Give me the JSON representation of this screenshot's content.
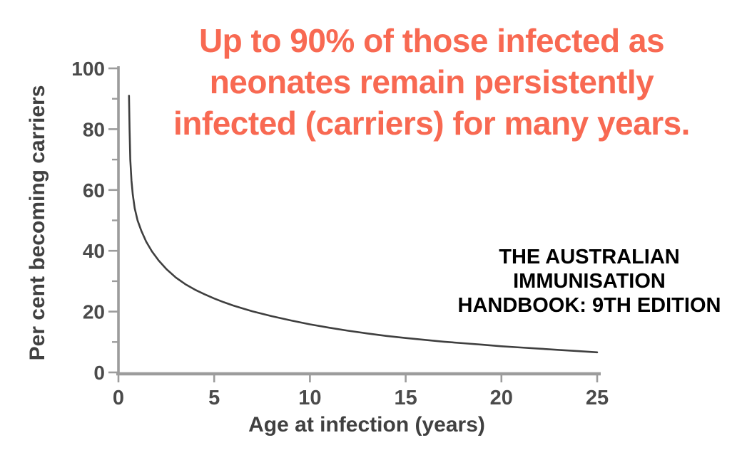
{
  "annotation": {
    "lines": [
      "Up to 90% of those infected as",
      "neonates remain persistently",
      "infected (carriers) for many years."
    ],
    "color": "#f86952"
  },
  "attribution": {
    "lines": [
      "THE AUSTRALIAN",
      "IMMUNISATION",
      "HANDBOOK: 9TH EDITION"
    ],
    "color": "#000000"
  },
  "chart_data": {
    "type": "line",
    "title": "",
    "xlabel": "Age at infection (years)",
    "ylabel": "Per cent becoming carriers",
    "xlim": [
      0,
      25
    ],
    "ylim": [
      0,
      100
    ],
    "x_ticks": [
      0,
      5,
      10,
      15,
      20,
      25
    ],
    "x_tick_labels": [
      "0",
      "5",
      "10",
      "15",
      "20",
      "25"
    ],
    "y_ticks_major": [
      0,
      20,
      40,
      60,
      80,
      100
    ],
    "y_tick_labels": [
      "0",
      "20",
      "40",
      "60",
      "80",
      "100"
    ],
    "y_ticks_minor": [
      10,
      30,
      50,
      70,
      90
    ],
    "grid": false,
    "legend": false,
    "series": [
      {
        "name": "per-cent-becoming-carriers",
        "x": [
          0.55,
          0.58,
          0.62,
          0.68,
          0.75,
          0.85,
          1.0,
          1.2,
          1.45,
          1.75,
          2.1,
          2.5,
          3.0,
          3.5,
          4.0,
          4.5,
          5.0,
          5.5,
          6.0,
          6.5,
          7.0,
          7.5,
          8.0,
          9.0,
          10.0,
          11.0,
          12.0,
          13.0,
          14.0,
          15.0,
          16.0,
          17.0,
          18.0,
          19.0,
          20.0,
          21.0,
          22.0,
          23.0,
          24.0,
          25.0
        ],
        "y": [
          91,
          80,
          70,
          63,
          58.5,
          54,
          50,
          46.5,
          43,
          39.8,
          36.8,
          34,
          31.2,
          29,
          27.2,
          25.7,
          24.3,
          23.1,
          22,
          21,
          20.1,
          19.3,
          18.5,
          17.1,
          15.8,
          14.7,
          13.7,
          12.8,
          12,
          11.3,
          10.7,
          10.1,
          9.6,
          9.1,
          8.6,
          8.2,
          7.8,
          7.4,
          7.0,
          6.6
        ]
      }
    ],
    "colors": {
      "curve": "#3f3f3f",
      "axis": "#9c9c9c",
      "tick_label": "#4a4a4a",
      "axis_title": "#404040"
    }
  }
}
